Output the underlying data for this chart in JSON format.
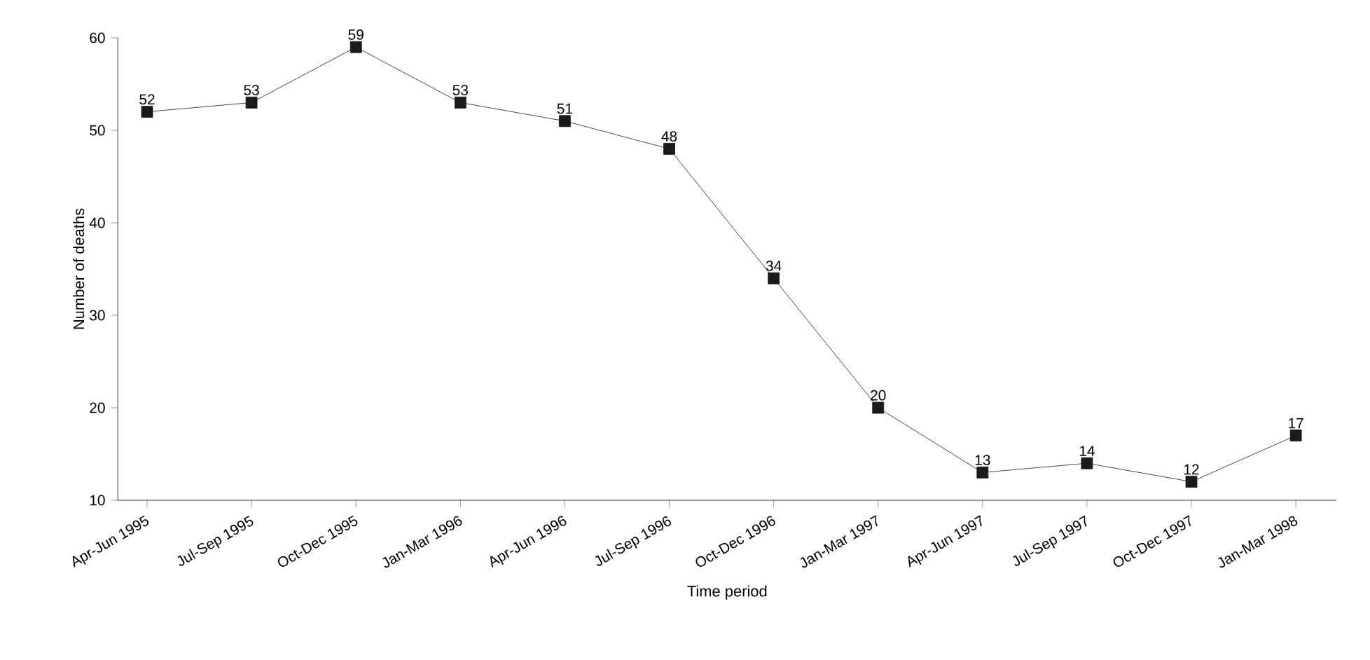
{
  "chart_data": {
    "type": "line",
    "xlabel": "Time period",
    "ylabel": "Number of deaths",
    "categories": [
      "Apr-Jun 1995",
      "Jul-Sep 1995",
      "Oct-Dec 1995",
      "Jan-Mar 1996",
      "Apr-Jun 1996",
      "Jul-Sep 1996",
      "Oct-Dec 1996",
      "Jan-Mar 1997",
      "Apr-Jun 1997",
      "Jul-Sep 1997",
      "Oct-Dec 1997",
      "Jan-Mar 1998"
    ],
    "values": [
      52,
      53,
      59,
      53,
      51,
      48,
      34,
      20,
      13,
      14,
      12,
      17
    ],
    "color": "#1a1a1a",
    "marker": "square",
    "line_style": "solid",
    "data_labels": true,
    "ylim": [
      10,
      60
    ],
    "yticks": [
      10,
      20,
      30,
      40,
      50,
      60
    ]
  }
}
